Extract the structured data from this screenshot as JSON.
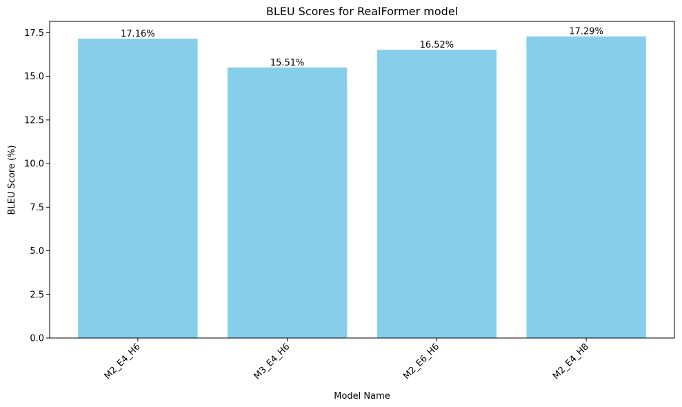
{
  "chart_data": {
    "type": "bar",
    "title": "BLEU Scores for RealFormer model",
    "xlabel": "Model Name",
    "ylabel": "BLEU Score (%)",
    "categories": [
      "M2_E4_H6",
      "M3_E4_H6",
      "M2_E6_H6",
      "M2_E4_H8"
    ],
    "values": [
      17.16,
      15.51,
      16.52,
      17.29
    ],
    "data_labels": [
      "17.16%",
      "15.51%",
      "16.52%",
      "17.29%"
    ],
    "ylim": [
      0,
      18.15
    ],
    "yticks": [
      0.0,
      2.5,
      5.0,
      7.5,
      10.0,
      12.5,
      15.0,
      17.5
    ],
    "ytick_labels": [
      "0.0",
      "2.5",
      "5.0",
      "7.5",
      "10.0",
      "12.5",
      "15.0",
      "17.5"
    ],
    "grid": false,
    "legend": "none",
    "bar_color": "#87CEEB"
  }
}
